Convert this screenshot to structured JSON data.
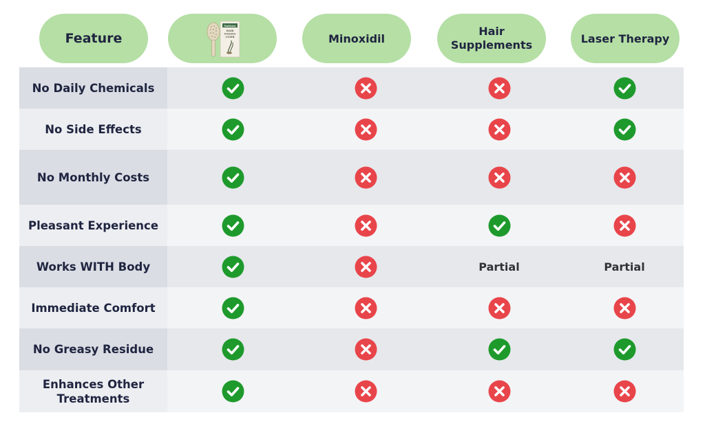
{
  "header": {
    "feature_label": "Feature",
    "product_icon": "hair-toning-comb-product-image",
    "product_box_brand": "Nattove",
    "product_box_title_1": "HAIR",
    "product_box_title_2": "TONING",
    "product_box_title_3": "COMB",
    "col_minoxidil": "Minoxidil",
    "col_supplements_line1": "Hair",
    "col_supplements_line2": "Supplements",
    "col_laser": "Laser Therapy"
  },
  "colors": {
    "pill_green": "#b5dfa5",
    "check_green": "#1e9a2c",
    "cross_red": "#e8454a",
    "text_navy": "#1f2440"
  },
  "rows": [
    {
      "feature": "No Daily Chemicals",
      "values": [
        "check",
        "cross",
        "cross",
        "check"
      ]
    },
    {
      "feature": "No Side Effects",
      "values": [
        "check",
        "cross",
        "cross",
        "check"
      ]
    },
    {
      "feature": "No Monthly Costs",
      "values": [
        "check",
        "cross",
        "cross",
        "cross"
      ]
    },
    {
      "feature": "Pleasant Experience",
      "values": [
        "check",
        "cross",
        "check",
        "cross"
      ]
    },
    {
      "feature": "Works WITH Body",
      "values": [
        "check",
        "cross",
        "Partial",
        "Partial"
      ]
    },
    {
      "feature": "Immediate Comfort",
      "values": [
        "check",
        "cross",
        "cross",
        "cross"
      ]
    },
    {
      "feature": "No Greasy Residue",
      "values": [
        "check",
        "cross",
        "check",
        "check"
      ]
    },
    {
      "feature": "Enhances Other Treatments",
      "values": [
        "check",
        "cross",
        "cross",
        "cross"
      ]
    }
  ]
}
